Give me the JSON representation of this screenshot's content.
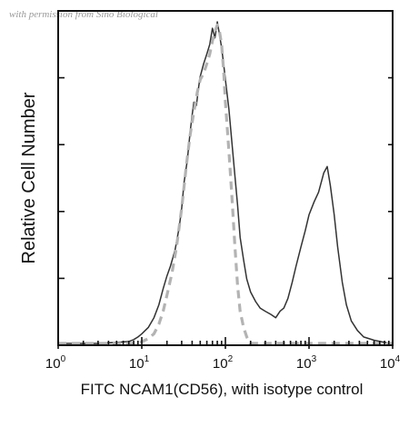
{
  "watermark": "with permission from Sino Biological",
  "chart_data": {
    "type": "line",
    "title": "",
    "xlabel": "FITC NCAM1(CD56), with isotype control",
    "ylabel": "Relative Cell Number",
    "xscale": "log",
    "xlim": [
      1,
      10000
    ],
    "ylim": [
      0,
      1
    ],
    "x_ticks": [
      {
        "base": "10",
        "exp": "0"
      },
      {
        "base": "10",
        "exp": "1"
      },
      {
        "base": "10",
        "exp": "2"
      },
      {
        "base": "10",
        "exp": "3"
      },
      {
        "base": "10",
        "exp": "4"
      }
    ],
    "grid": false,
    "series": [
      {
        "style": "solid",
        "color": "#333333",
        "points": [
          [
            1,
            0.0
          ],
          [
            3,
            0.0
          ],
          [
            5,
            0.003
          ],
          [
            7,
            0.006
          ],
          [
            8,
            0.012
          ],
          [
            9,
            0.02
          ],
          [
            10,
            0.03
          ],
          [
            12,
            0.05
          ],
          [
            14,
            0.08
          ],
          [
            16,
            0.12
          ],
          [
            18,
            0.17
          ],
          [
            20,
            0.21
          ],
          [
            22,
            0.24
          ],
          [
            25,
            0.29
          ],
          [
            28,
            0.36
          ],
          [
            30,
            0.42
          ],
          [
            32,
            0.5
          ],
          [
            35,
            0.57
          ],
          [
            38,
            0.66
          ],
          [
            40,
            0.71
          ],
          [
            42,
            0.75
          ],
          [
            45,
            0.74
          ],
          [
            48,
            0.8
          ],
          [
            50,
            0.83
          ],
          [
            55,
            0.87
          ],
          [
            60,
            0.9
          ],
          [
            65,
            0.93
          ],
          [
            70,
            0.98
          ],
          [
            75,
            0.95
          ],
          [
            80,
            1.0
          ],
          [
            85,
            0.96
          ],
          [
            90,
            0.92
          ],
          [
            95,
            0.87
          ],
          [
            100,
            0.82
          ],
          [
            110,
            0.73
          ],
          [
            120,
            0.62
          ],
          [
            130,
            0.52
          ],
          [
            140,
            0.43
          ],
          [
            150,
            0.33
          ],
          [
            165,
            0.26
          ],
          [
            180,
            0.2
          ],
          [
            200,
            0.16
          ],
          [
            230,
            0.13
          ],
          [
            260,
            0.11
          ],
          [
            300,
            0.1
          ],
          [
            350,
            0.09
          ],
          [
            400,
            0.08
          ],
          [
            450,
            0.1
          ],
          [
            500,
            0.11
          ],
          [
            560,
            0.14
          ],
          [
            630,
            0.19
          ],
          [
            700,
            0.24
          ],
          [
            800,
            0.3
          ],
          [
            900,
            0.35
          ],
          [
            1000,
            0.4
          ],
          [
            1150,
            0.44
          ],
          [
            1300,
            0.47
          ],
          [
            1500,
            0.53
          ],
          [
            1650,
            0.55
          ],
          [
            1800,
            0.49
          ],
          [
            2000,
            0.4
          ],
          [
            2200,
            0.3
          ],
          [
            2500,
            0.19
          ],
          [
            2800,
            0.12
          ],
          [
            3200,
            0.07
          ],
          [
            3800,
            0.04
          ],
          [
            4500,
            0.02
          ],
          [
            6000,
            0.01
          ],
          [
            8000,
            0.003
          ],
          [
            10000,
            0.0
          ]
        ]
      },
      {
        "style": "dashed",
        "color": "#b3b3b3",
        "points": [
          [
            1,
            0.0
          ],
          [
            8,
            0.0
          ],
          [
            10,
            0.005
          ],
          [
            12,
            0.015
          ],
          [
            14,
            0.03
          ],
          [
            16,
            0.06
          ],
          [
            18,
            0.1
          ],
          [
            20,
            0.15
          ],
          [
            23,
            0.22
          ],
          [
            26,
            0.3
          ],
          [
            30,
            0.42
          ],
          [
            34,
            0.55
          ],
          [
            38,
            0.65
          ],
          [
            42,
            0.72
          ],
          [
            46,
            0.78
          ],
          [
            50,
            0.82
          ],
          [
            55,
            0.84
          ],
          [
            60,
            0.87
          ],
          [
            65,
            0.9
          ],
          [
            70,
            0.94
          ],
          [
            75,
            0.97
          ],
          [
            80,
            0.99
          ],
          [
            85,
            0.97
          ],
          [
            90,
            0.93
          ],
          [
            95,
            0.85
          ],
          [
            100,
            0.75
          ],
          [
            110,
            0.6
          ],
          [
            120,
            0.45
          ],
          [
            130,
            0.3
          ],
          [
            140,
            0.18
          ],
          [
            150,
            0.1
          ],
          [
            165,
            0.05
          ],
          [
            180,
            0.02
          ],
          [
            200,
            0.0
          ],
          [
            10000,
            0.0
          ]
        ]
      }
    ]
  }
}
